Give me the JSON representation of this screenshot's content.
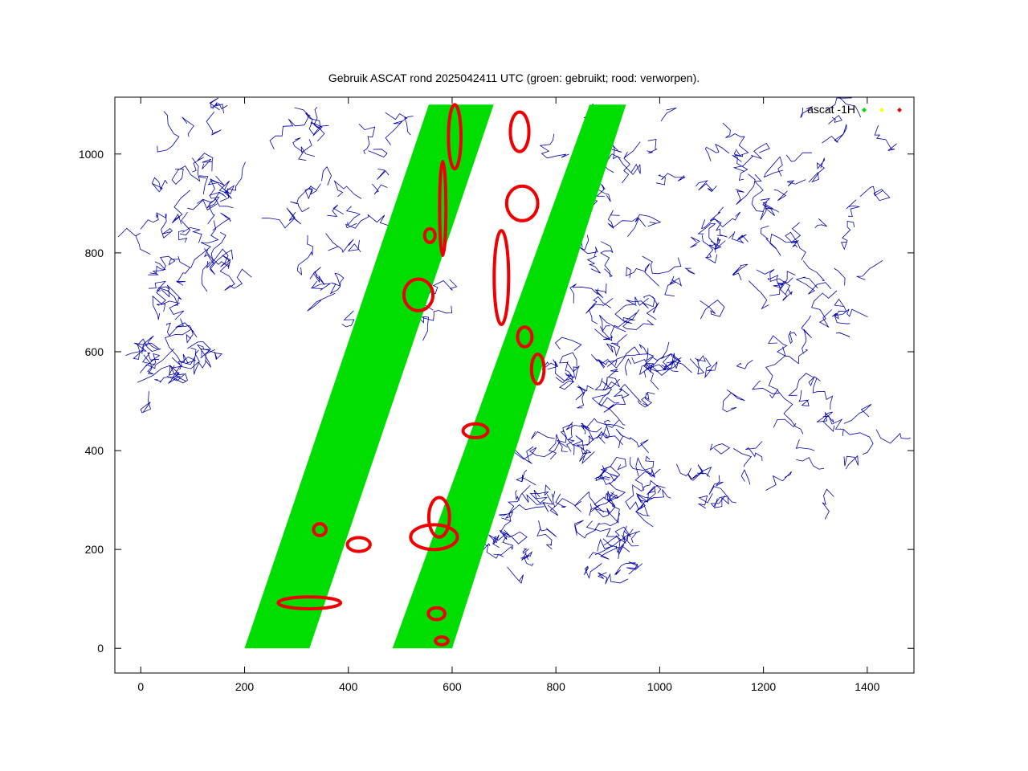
{
  "chart_data": {
    "type": "scatter",
    "title": "Gebruik ASCAT rond 2025042411 UTC (groen: gebruikt; rood: verworpen).",
    "xlabel": "",
    "ylabel": "",
    "xlim": [
      -50,
      1490
    ],
    "ylim": [
      -50,
      1115
    ],
    "xticks": [
      0,
      200,
      400,
      600,
      800,
      1000,
      1200,
      1400
    ],
    "yticks": [
      0,
      200,
      400,
      600,
      800,
      1000
    ],
    "grid": false,
    "legend": {
      "placement": "top-right",
      "label": "ascat -1H"
    },
    "colors": {
      "used": "#00dd00",
      "rejected": "#ee0000",
      "third": "#ffff00",
      "coast": "#0000aa",
      "axis": "#000000"
    },
    "series": [
      {
        "key": "used",
        "swaths": [
          {
            "bottom": [
              200,
              325
            ],
            "top": [
              555,
              680
            ]
          },
          {
            "bottom": [
              485,
              600
            ],
            "top": [
              865,
              935
            ]
          }
        ]
      },
      {
        "key": "rejected",
        "patches": [
          {
            "x": 535,
            "y": 715,
            "rx": 28,
            "ry": 32
          },
          {
            "x": 557,
            "y": 835,
            "rx": 10,
            "ry": 14
          },
          {
            "x": 582,
            "y": 890,
            "rx": 6,
            "ry": 95
          },
          {
            "x": 605,
            "y": 1035,
            "rx": 12,
            "ry": 65
          },
          {
            "x": 730,
            "y": 1045,
            "rx": 18,
            "ry": 40
          },
          {
            "x": 695,
            "y": 750,
            "rx": 14,
            "ry": 95
          },
          {
            "x": 735,
            "y": 900,
            "rx": 30,
            "ry": 35
          },
          {
            "x": 740,
            "y": 630,
            "rx": 14,
            "ry": 20
          },
          {
            "x": 765,
            "y": 565,
            "rx": 12,
            "ry": 30
          },
          {
            "x": 645,
            "y": 440,
            "rx": 24,
            "ry": 14
          },
          {
            "x": 565,
            "y": 225,
            "rx": 45,
            "ry": 25
          },
          {
            "x": 575,
            "y": 265,
            "rx": 20,
            "ry": 40
          },
          {
            "x": 420,
            "y": 210,
            "rx": 22,
            "ry": 14
          },
          {
            "x": 345,
            "y": 240,
            "rx": 12,
            "ry": 12
          },
          {
            "x": 325,
            "y": 92,
            "rx": 60,
            "ry": 12
          },
          {
            "x": 570,
            "y": 70,
            "rx": 16,
            "ry": 12
          },
          {
            "x": 580,
            "y": 15,
            "rx": 12,
            "ry": 8
          }
        ]
      }
    ]
  }
}
